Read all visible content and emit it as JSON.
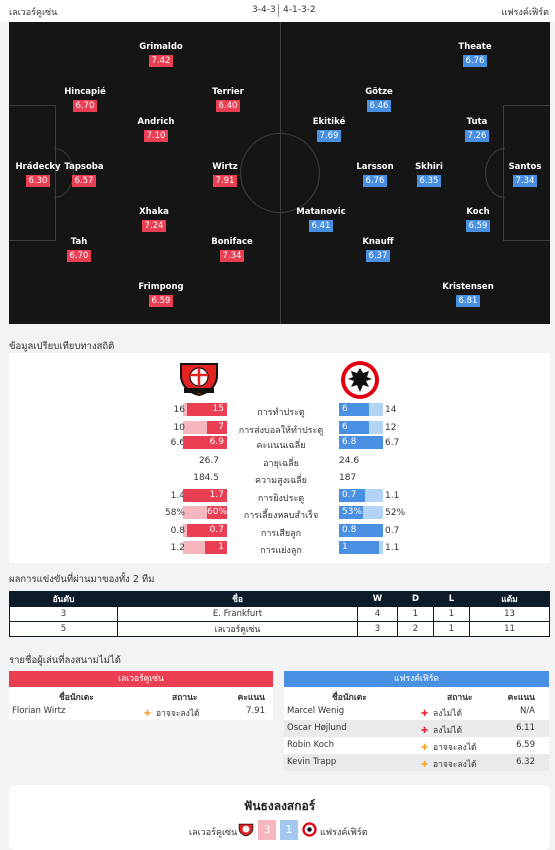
{
  "header": {
    "home_team": "เลเวอร์คูเซ่น",
    "home_formation": "3-4-3",
    "away_formation": "4-1-3-2",
    "away_team": "แฟรงค์เฟิร์ต"
  },
  "lineup": {
    "home": [
      {
        "name": "Grimaldo",
        "rating": "7.42"
      },
      {
        "name": "Hincapié",
        "rating": "6.70"
      },
      {
        "name": "Terrier",
        "rating": "6.40"
      },
      {
        "name": "Andrich",
        "rating": "7.10"
      },
      {
        "name": "Hrádecky",
        "rating": "6.30"
      },
      {
        "name": "Tapsoba",
        "rating": "6.57"
      },
      {
        "name": "Wirtz",
        "rating": "7.91"
      },
      {
        "name": "Xhaka",
        "rating": "7.24"
      },
      {
        "name": "Tah",
        "rating": "6.70"
      },
      {
        "name": "Boniface",
        "rating": "7.34"
      },
      {
        "name": "Frimpong",
        "rating": "6.59"
      }
    ],
    "away": [
      {
        "name": "Theate",
        "rating": "6.76"
      },
      {
        "name": "Götze",
        "rating": "6.46"
      },
      {
        "name": "Ekitiké",
        "rating": "7.69"
      },
      {
        "name": "Tuta",
        "rating": "7.26"
      },
      {
        "name": "Larsson",
        "rating": "6.76"
      },
      {
        "name": "Skhiri",
        "rating": "6.35"
      },
      {
        "name": "Santos",
        "rating": "7.34"
      },
      {
        "name": "Matanovic",
        "rating": "6.41"
      },
      {
        "name": "Koch",
        "rating": "6.59"
      },
      {
        "name": "Knauff",
        "rating": "6.37"
      },
      {
        "name": "Kristensen",
        "rating": "6.81"
      }
    ]
  },
  "stats": {
    "title": "ข้อมูลเปรียบเทียบทางสถิติ",
    "rows": [
      {
        "label": "การทำประตู",
        "home_avg": "16",
        "home": "15",
        "away": "6",
        "away_avg": "14",
        "hp": 40,
        "ap": 30
      },
      {
        "label": "การส่งบอลให้ทำประตู",
        "home_avg": "10",
        "home": "7",
        "away": "6",
        "away_avg": "12",
        "hp": 20,
        "ap": 30
      },
      {
        "label": "คะแนนเฉลี่ย",
        "home_avg": "6.6",
        "home": "6.9",
        "away": "6.8",
        "away_avg": "6.7",
        "hp": 44,
        "ap": 44
      },
      {
        "label": "อายุเฉลี่ย",
        "home_avg": "",
        "home": "26.7",
        "away": "24.6",
        "away_avg": "",
        "hp": 0,
        "ap": 0
      },
      {
        "label": "ความสูงเฉลี่ย",
        "home_avg": "",
        "home": "184.5",
        "away": "187",
        "away_avg": "",
        "hp": 0,
        "ap": 0
      },
      {
        "label": "การยิงประตู",
        "home_avg": "1.4",
        "home": "1.7",
        "away": "0.7",
        "away_avg": "1.1",
        "hp": 44,
        "ap": 26
      },
      {
        "label": "การเลี้ยงหลบสำเร็จ",
        "home_avg": "58%",
        "home": "60%",
        "away": "53%",
        "away_avg": "52%",
        "hp": 20,
        "ap": 24
      },
      {
        "label": "การเสียลูก",
        "home_avg": "0.8",
        "home": "0.7",
        "away": "0.8",
        "away_avg": "0.7",
        "hp": 40,
        "ap": 44
      },
      {
        "label": "การแย่งลูก",
        "home_avg": "1.2",
        "home": "1",
        "away": "1",
        "away_avg": "1.1",
        "hp": 22,
        "ap": 40
      }
    ]
  },
  "standings": {
    "title": "ผลการแข่งขันที่ผ่านมาของทั้ง 2 ทีม",
    "headers": [
      "อันดับ",
      "ชื่อ",
      "W",
      "D",
      "L",
      "แต้ม"
    ],
    "rows": [
      [
        "3",
        "E. Frankfurt",
        "4",
        "1",
        "1",
        "13"
      ],
      [
        "5",
        "เลเวอร์คูเซ่น",
        "3",
        "2",
        "1",
        "11"
      ]
    ]
  },
  "absent": {
    "title": "รายชื่อผู้เล่นที่ลงสนามไม่ได้",
    "col_player": "ชื่อนักเตะ",
    "col_status": "สถานะ",
    "col_rating": "คะแนน",
    "home_title": "เลเวอร์คูเซ่น",
    "away_title": "แฟรงค์เฟิร์ต",
    "home": [
      {
        "name": "Florian Wirtz",
        "status": "อาจจะลงได้",
        "rating": "7.91",
        "icon": "warn"
      }
    ],
    "away": [
      {
        "name": "Marcel Wenig",
        "status": "ลงไม่ได้",
        "rating": "N/A",
        "icon": "plus"
      },
      {
        "name": "Oscar Højlund",
        "status": "ลงไม่ได้",
        "rating": "6.11",
        "icon": "plus"
      },
      {
        "name": "Robin Koch",
        "status": "อาจจะลงได้",
        "rating": "6.59",
        "icon": "warn"
      },
      {
        "name": "Kevin Trapp",
        "status": "อาจจะลงได้",
        "rating": "6.32",
        "icon": "warn"
      }
    ]
  },
  "h2h": {
    "title": "ฟันธงลงสกอร์",
    "home": "เลเวอร์คูเซ่น",
    "home_score": "3",
    "away_score": "1",
    "away": "แฟรงค์เฟิร์ต"
  },
  "colors": {
    "home": "#ea3e53",
    "away": "#4a90e2",
    "dark": "#0d1b2a"
  }
}
